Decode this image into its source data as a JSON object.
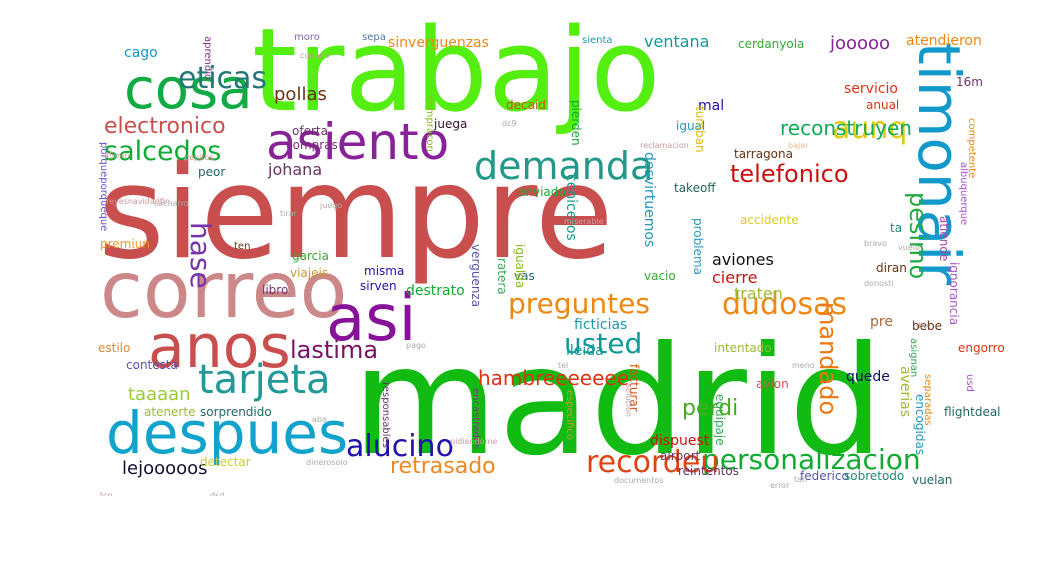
{
  "cloud": {
    "words": [
      {
        "text": "siempre",
        "color": "#c94f4f"
      },
      {
        "text": "madrid",
        "color": "#11bb11"
      },
      {
        "text": "trabajo",
        "color": "#55ee11"
      },
      {
        "text": "timonair",
        "color": "#1199cc"
      },
      {
        "text": "correo",
        "color": "#cc8888"
      },
      {
        "text": "cosa",
        "color": "#11aa44"
      },
      {
        "text": "asiento",
        "color": "#882299"
      },
      {
        "text": "asi",
        "color": "#881199"
      },
      {
        "text": "anos",
        "color": "#c94f4f"
      },
      {
        "text": "despues",
        "color": "#11a3cc"
      },
      {
        "text": "tarjeta",
        "color": "#229999"
      },
      {
        "text": "eticas",
        "color": "#227777"
      },
      {
        "text": "salcedos",
        "color": "#11aa33"
      },
      {
        "text": "electronico",
        "color": "#c94f4f"
      },
      {
        "text": "demanda",
        "color": "#229988"
      },
      {
        "text": "aunq",
        "color": "#ddcc11"
      },
      {
        "text": "telefonico",
        "color": "#cc1111"
      },
      {
        "text": "pesimo",
        "color": "#22aa44"
      },
      {
        "text": "hase",
        "color": "#7733aa"
      },
      {
        "text": "preguntes",
        "color": "#ee8811"
      },
      {
        "text": "dudosas",
        "color": "#ee8811"
      },
      {
        "text": "lastima",
        "color": "#771166"
      },
      {
        "text": "usted",
        "color": "#119999"
      },
      {
        "text": "mandado",
        "color": "#ee7711"
      },
      {
        "text": "personalizacion",
        "color": "#11aa33"
      },
      {
        "text": "recordeu",
        "color": "#dd4411"
      },
      {
        "text": "alucino",
        "color": "#2211aa"
      },
      {
        "text": "retrasado",
        "color": "#ee8822"
      },
      {
        "text": "hambreeeeeee",
        "color": "#dd3311"
      },
      {
        "text": "perdi",
        "color": "#44aa22"
      },
      {
        "text": "taaaan",
        "color": "#99cc33"
      },
      {
        "text": "lejooooos",
        "color": "#111133"
      },
      {
        "text": "reconstruyen",
        "color": "#11aa55"
      },
      {
        "text": "ventana",
        "color": "#119999"
      },
      {
        "text": "jooooo",
        "color": "#882299"
      },
      {
        "text": "sinverguenzas",
        "color": "#ee8811"
      },
      {
        "text": "atendieron",
        "color": "#ee8811"
      },
      {
        "text": "cerdanyola",
        "color": "#33aa33"
      },
      {
        "text": "servicio",
        "color": "#dd3311"
      },
      {
        "text": "pollas",
        "color": "#663311"
      },
      {
        "text": "cago",
        "color": "#1199cc"
      },
      {
        "text": "mal",
        "color": "#2211aa"
      },
      {
        "text": "johana",
        "color": "#663366"
      },
      {
        "text": "aviones",
        "color": "#111111"
      },
      {
        "text": "cierre",
        "color": "#cc1111"
      },
      {
        "text": "traten",
        "color": "#99bb33"
      },
      {
        "text": "ceniceros",
        "color": "#119988"
      },
      {
        "text": "desvirtuemos",
        "color": "#2299bb"
      },
      {
        "text": "ficticias",
        "color": "#2299aa"
      },
      {
        "text": "destrato",
        "color": "#11aa33"
      },
      {
        "text": "lleida",
        "color": "#119999"
      },
      {
        "text": "quede",
        "color": "#111166"
      },
      {
        "text": "averias",
        "color": "#99bb33"
      },
      {
        "text": "misma",
        "color": "#2211aa"
      },
      {
        "text": "sirven",
        "color": "#2211aa"
      },
      {
        "text": "viajeis",
        "color": "#cc9933"
      },
      {
        "text": "garcia",
        "color": "#33aa33"
      },
      {
        "text": "oferta",
        "color": "#663366"
      },
      {
        "text": "compras",
        "color": "#773377"
      },
      {
        "text": "juega",
        "color": "#331133"
      },
      {
        "text": "pierden",
        "color": "#11aa33"
      },
      {
        "text": "igual",
        "color": "#2299bb"
      },
      {
        "text": "tumban",
        "color": "#ddbb11"
      },
      {
        "text": "tarragona",
        "color": "#663311"
      },
      {
        "text": "anual",
        "color": "#dd3311"
      },
      {
        "text": "16m",
        "color": "#663366"
      },
      {
        "text": "competente",
        "color": "#ee8811"
      },
      {
        "text": "albuquerque",
        "color": "#aa55cc"
      },
      {
        "text": "takeoff",
        "color": "#226655"
      },
      {
        "text": "enviado",
        "color": "#11aa33"
      },
      {
        "text": "decaid",
        "color": "#cc5511"
      },
      {
        "text": "compracon",
        "color": "#88bb22"
      },
      {
        "text": "aprendio",
        "color": "#883388"
      },
      {
        "text": "moro",
        "color": "#8866aa"
      },
      {
        "text": "sepa",
        "color": "#5577aa"
      },
      {
        "text": "sienta",
        "color": "#2299aa"
      },
      {
        "text": "peor",
        "color": "#226666"
      },
      {
        "text": "libro",
        "color": "#773377"
      },
      {
        "text": "ten",
        "color": "#663311"
      },
      {
        "text": "premiun",
        "color": "#ee9922"
      },
      {
        "text": "porqueporqueque",
        "color": "#6655cc"
      },
      {
        "text": "ta",
        "color": "#228877"
      },
      {
        "text": "accidente",
        "color": "#ddcc22"
      },
      {
        "text": "atiende",
        "color": "#aa44aa"
      },
      {
        "text": "ignorancia",
        "color": "#aa55cc"
      },
      {
        "text": "diran",
        "color": "#663311"
      },
      {
        "text": "vacio",
        "color": "#33aa33"
      },
      {
        "text": "vas",
        "color": "#226666"
      },
      {
        "text": "pre",
        "color": "#aa6633"
      },
      {
        "text": "bebe",
        "color": "#663311"
      },
      {
        "text": "engorro",
        "color": "#dd3311"
      },
      {
        "text": "asignan",
        "color": "#33aa55"
      },
      {
        "text": "intentado",
        "color": "#99bb33"
      },
      {
        "text": "avion",
        "color": "#cc5555"
      },
      {
        "text": "contesta",
        "color": "#5555aa"
      },
      {
        "text": "estilo",
        "color": "#dd8833"
      },
      {
        "text": "atenerte",
        "color": "#99bb33"
      },
      {
        "text": "sorprendido",
        "color": "#226666"
      },
      {
        "text": "detectar",
        "color": "#cccc33"
      },
      {
        "text": "responsables",
        "color": "#663366"
      },
      {
        "text": "encastrados",
        "color": "#883388"
      },
      {
        "text": "especifico",
        "color": "#cc9933"
      },
      {
        "text": "facturar",
        "color": "#cc5511"
      },
      {
        "text": "equipaje",
        "color": "#33aa55"
      },
      {
        "text": "separadas",
        "color": "#ee8811"
      },
      {
        "text": "encogidas",
        "color": "#2299bb"
      },
      {
        "text": "flightdeal",
        "color": "#226666"
      },
      {
        "text": "dispuest",
        "color": "#cc1111"
      },
      {
        "text": "airport",
        "color": "#663366"
      },
      {
        "text": "reintentos",
        "color": "#663366"
      },
      {
        "text": "federico",
        "color": "#5555aa"
      },
      {
        "text": "sobretodo",
        "color": "#228877"
      },
      {
        "text": "vuelan",
        "color": "#226666"
      },
      {
        "text": "usd",
        "color": "#aa55cc"
      },
      {
        "text": "problema",
        "color": "#2299bb"
      },
      {
        "text": "verguenza",
        "color": "#5555aa"
      },
      {
        "text": "ratera",
        "color": "#33aa55"
      },
      {
        "text": "igualda",
        "color": "#88bb22"
      },
      {
        "text": "cacharro",
        "color": "#aaaaaa"
      },
      {
        "text": "tirar",
        "color": "#aaaaaa"
      },
      {
        "text": "juego",
        "color": "#aaaaaa"
      },
      {
        "text": "solucion",
        "color": "#cc9999"
      },
      {
        "text": "pidiendome",
        "color": "#cc9999"
      },
      {
        "text": "dinerosolo",
        "color": "#aaaaaa"
      },
      {
        "text": "documentos",
        "color": "#aaaaaa"
      },
      {
        "text": "error",
        "color": "#aaaaaa"
      },
      {
        "text": "pepitos",
        "color": "#cc9999"
      },
      {
        "text": "reclamacion",
        "color": "#cc9999"
      },
      {
        "text": "dc9",
        "color": "#aaaaaa"
      },
      {
        "text": "bajar",
        "color": "#ddbb88"
      },
      {
        "text": "miserable",
        "color": "#cc9999"
      },
      {
        "text": "reyesnavidadfin",
        "color": "#cc9999"
      },
      {
        "text": "45min",
        "color": "#cc9999"
      },
      {
        "text": "tco",
        "color": "#cc9999"
      },
      {
        "text": "cuando",
        "color": "#cc9999"
      },
      {
        "text": "treserva",
        "color": "#aaaaaa"
      },
      {
        "text": "pago",
        "color": "#aaaaaa"
      },
      {
        "text": "tel",
        "color": "#aaaaaa"
      },
      {
        "text": "meno",
        "color": "#aaaaaa"
      },
      {
        "text": "tan",
        "color": "#aaaaaa"
      },
      {
        "text": "ibb",
        "color": "#aaaaaa"
      },
      {
        "text": "bravo",
        "color": "#aaaaaa"
      },
      {
        "text": "donosti",
        "color": "#aaaaaa"
      },
      {
        "text": "vuelo",
        "color": "#aaaaaa"
      },
      {
        "text": "abq",
        "color": "#aaaaaa"
      },
      {
        "text": "dsd",
        "color": "#aaaaaa"
      }
    ]
  }
}
